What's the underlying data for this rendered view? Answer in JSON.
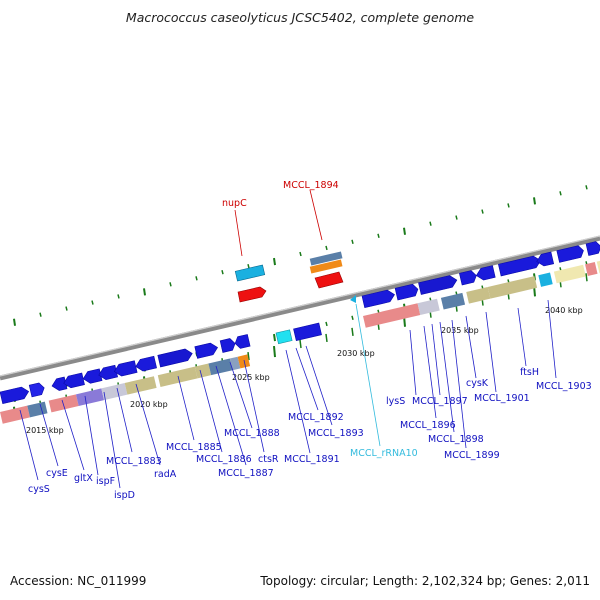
{
  "title": "Macrococcus caseolyticus JCSC5402, complete genome",
  "footer": {
    "accession": "Accession: NC_011999",
    "summary": "Topology: circular; Length: 2,102,324 bp; Genes: 2,011"
  },
  "colors": {
    "backbone": "#8a8a8a",
    "gene_blue": "#1a1adb",
    "gene_dark": "#0a0aa8",
    "red_label": "#cc0000",
    "cyan_label": "#33bbdd",
    "tick_green": "#1a7a1a",
    "cog_tan": "#c8bf88",
    "cog_pink": "#e88a8a",
    "cog_steel": "#5a7fa8",
    "cog_orange": "#f08a18",
    "cog_purple": "#8a7ad8",
    "cog_cyan": "#1ab0e0"
  },
  "kbp_ticks": [
    "2015 kbp",
    "2020 kbp",
    "2025 kbp",
    "2030 kbp",
    "2035 kbp",
    "2040 kbp"
  ],
  "genes_top": [
    {
      "name": "nupC",
      "color": "red"
    },
    {
      "name": "MCCL_1894",
      "color": "red"
    }
  ],
  "genes_bottom": [
    "cysS",
    "cysE",
    "gltX",
    "ispF",
    "ispD",
    "MCCL_1883",
    "radA",
    "MCCL_1885",
    "MCCL_1886",
    "MCCL_1887",
    "MCCL_1888",
    "ctsR",
    "MCCL_1891",
    "MCCL_1892",
    "MCCL_1893",
    "MCCL_rRNA10",
    "lysS",
    "MCCL_1896",
    "MCCL_1897",
    "MCCL_1898",
    "MCCL_1899",
    "cysK",
    "MCCL_1901",
    "ftsH",
    "MCCL_1903"
  ]
}
